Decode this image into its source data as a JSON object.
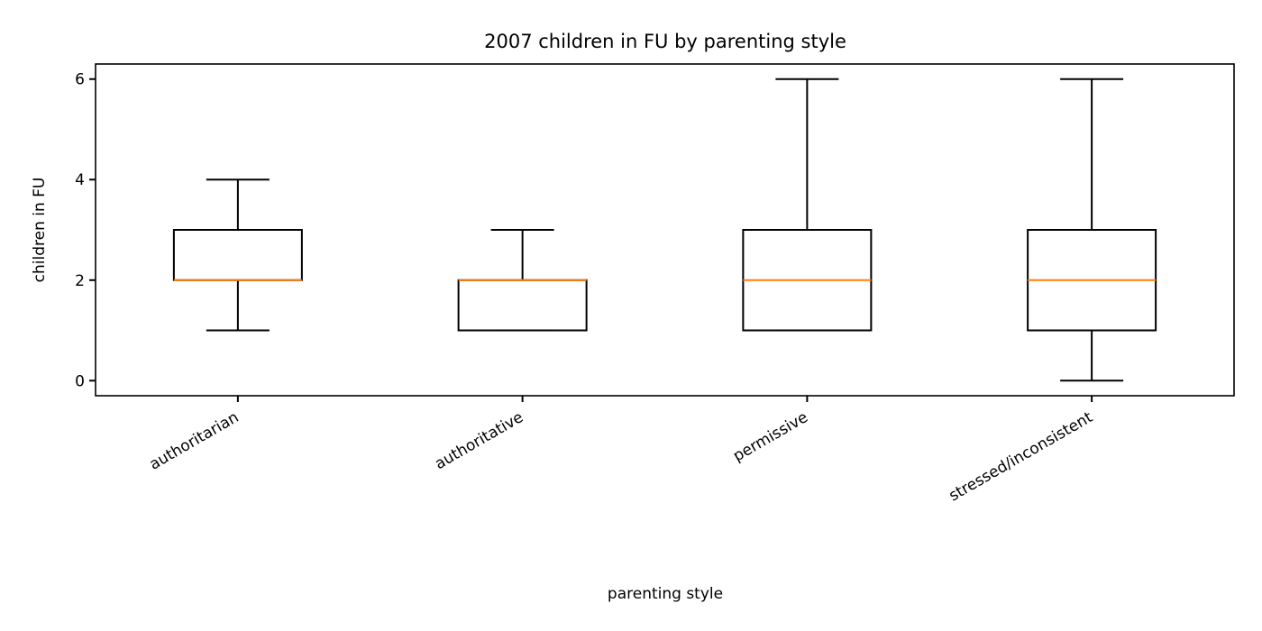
{
  "chart_data": {
    "type": "box",
    "title": "2007 children in FU by parenting style",
    "xlabel": "parenting style",
    "ylabel": "children in FU",
    "categories": [
      "authoritarian",
      "authoritative",
      "permissive",
      "stressed/inconsistent"
    ],
    "boxes": [
      {
        "category": "authoritarian",
        "whisker_low": 1,
        "q1": 2,
        "median": 2,
        "q3": 3,
        "whisker_high": 4
      },
      {
        "category": "authoritative",
        "whisker_low": 1,
        "q1": 1,
        "median": 2,
        "q3": 2,
        "whisker_high": 3
      },
      {
        "category": "permissive",
        "whisker_low": 1,
        "q1": 1,
        "median": 2,
        "q3": 3,
        "whisker_high": 6
      },
      {
        "category": "stressed/inconsistent",
        "whisker_low": 0,
        "q1": 1,
        "median": 2,
        "q3": 3,
        "whisker_high": 6
      }
    ],
    "yticks": [
      "0",
      "2",
      "4",
      "6"
    ],
    "ylim": [
      -0.3,
      6.3
    ],
    "grid": false,
    "colors": {
      "box": "#000000",
      "median": "#ff7f0e"
    }
  }
}
